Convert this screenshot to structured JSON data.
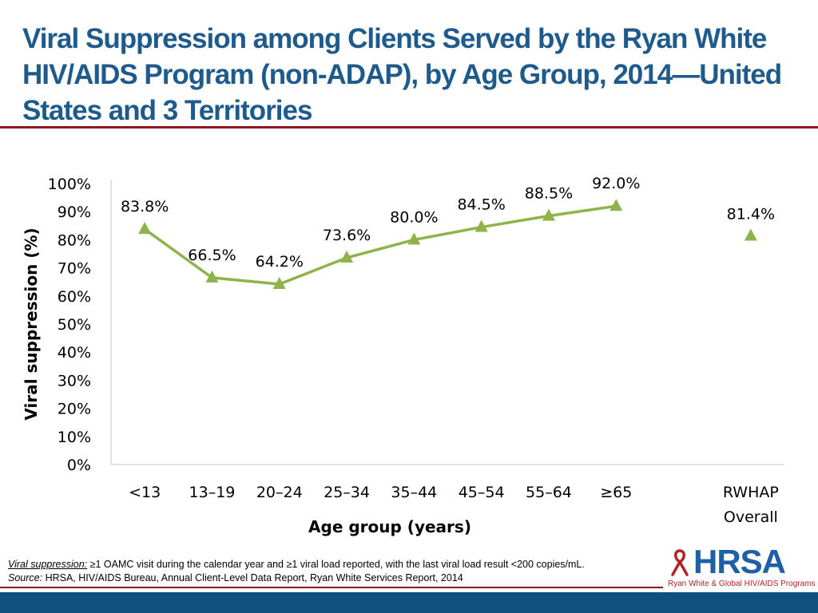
{
  "title": "Viral Suppression among Clients Served by the Ryan White HIV/AIDS Program (non-ADAP), by Age Group, 2014—United States and 3 Territories",
  "chart_data": {
    "type": "line",
    "title": "",
    "xlabel": "Age group (years)",
    "ylabel": "Viral suppression (%)",
    "ylim": [
      0,
      100
    ],
    "yticks": [
      "0%",
      "10%",
      "20%",
      "30%",
      "40%",
      "50%",
      "60%",
      "70%",
      "80%",
      "90%",
      "100%"
    ],
    "categories": [
      "<13",
      "13–19",
      "20–24",
      "25–34",
      "35–44",
      "45–54",
      "55–64",
      "≥65"
    ],
    "values": [
      83.8,
      66.5,
      64.2,
      73.6,
      80.0,
      84.5,
      88.5,
      92.0
    ],
    "labels": [
      "83.8%",
      "66.5%",
      "64.2%",
      "73.6%",
      "80.0%",
      "84.5%",
      "88.5%",
      "92.0%"
    ],
    "overall": {
      "category": [
        "RWHAP",
        "Overall"
      ],
      "value": 81.4,
      "label": "81.4%"
    },
    "marker": "triangle",
    "color": "#8db34a",
    "grid": false
  },
  "footnote": {
    "line1_label": "Viral suppression:",
    "line1_text": " ≥1 OAMC visit during the calendar year and ≥1 viral load reported, with the last viral load result <200 copies/mL.",
    "line2_label": "Source:",
    "line2_text": " HRSA, HIV/AIDS Bureau, Annual Client-Level Data Report, Ryan White Services Report, 2014"
  },
  "logo": {
    "name": "HRSA",
    "tagline": "Ryan White & Global HIV/AIDS Programs"
  }
}
